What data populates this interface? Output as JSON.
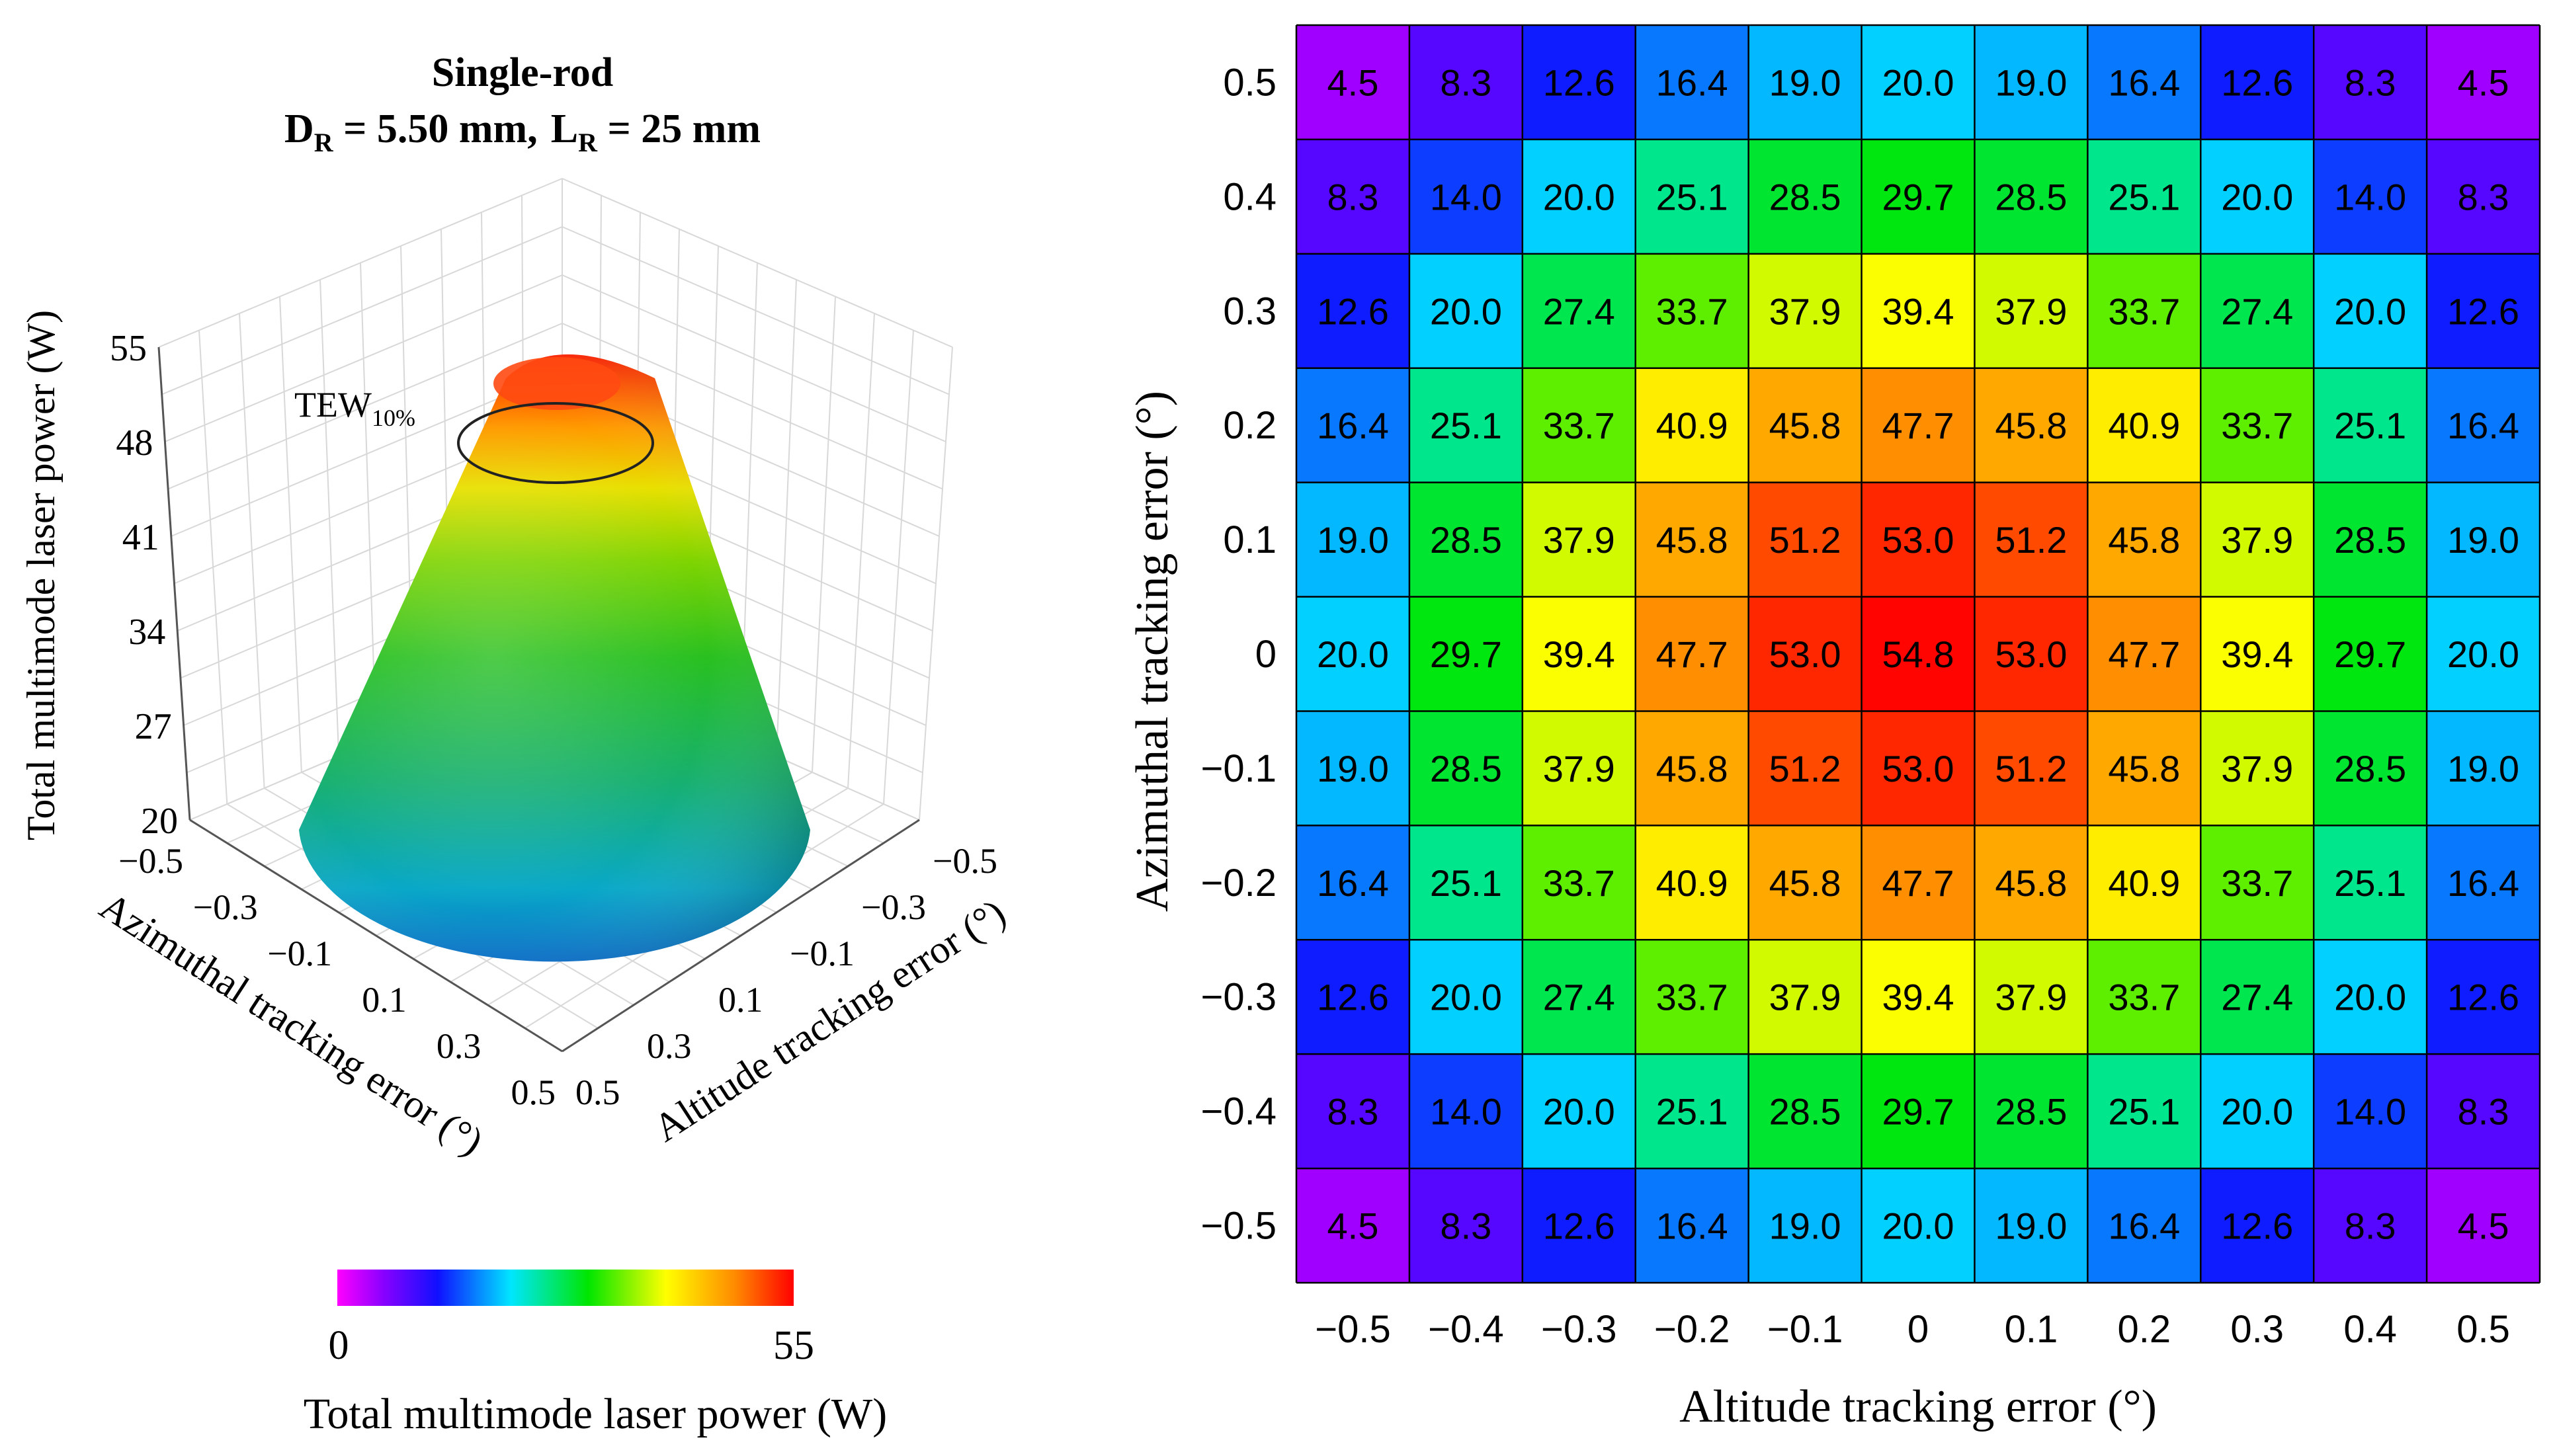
{
  "chart_data": [
    {
      "type": "surface",
      "title": "Single-rod",
      "subtitle_parts": {
        "d_symbol": "D",
        "d_sub": "R",
        "d_value": " = 5.50 mm,",
        "l_symbol": "L",
        "l_sub": "R",
        "l_value": " = 25 mm"
      },
      "zlabel": "Total multimode laser power (W)",
      "xlabel": "Azimuthal tracking error (°)",
      "ylabel": "Altitude tracking error (°)",
      "z_ticks": [
        "55",
        "48",
        "41",
        "34",
        "27",
        "20"
      ],
      "zlim": [
        20,
        55
      ],
      "x_ticks": [
        "−0.5",
        "−0.3",
        "−0.1",
        "0.1",
        "0.3",
        "0.5"
      ],
      "y_ticks": [
        "−0.5",
        "−0.3",
        "−0.1",
        "0.1",
        "0.3",
        "0.5"
      ],
      "annotation": {
        "text": "TEW",
        "sub": "10%"
      },
      "peak": 54.8,
      "colorbar": {
        "min_label": "0",
        "max_label": "55",
        "label": "Total multimode laser power (W)",
        "range": [
          0,
          55
        ]
      }
    },
    {
      "type": "heatmap",
      "xlabel": "Altitude tracking error (°)",
      "ylabel": "Azimuthal tracking error (°)",
      "x": [
        "−0.5",
        "−0.4",
        "−0.3",
        "−0.2",
        "−0.1",
        "0",
        "0.1",
        "0.2",
        "0.3",
        "0.4",
        "0.5"
      ],
      "y": [
        "0.5",
        "0.4",
        "0.3",
        "0.2",
        "0.1",
        "0",
        "−0.1",
        "−0.2",
        "−0.3",
        "−0.4",
        "−0.5"
      ],
      "values": [
        [
          "4.5",
          "8.3",
          "12.6",
          "16.4",
          "19.0",
          "20.0",
          "19.0",
          "16.4",
          "12.6",
          "8.3",
          "4.5"
        ],
        [
          "8.3",
          "14.0",
          "20.0",
          "25.1",
          "28.5",
          "29.7",
          "28.5",
          "25.1",
          "20.0",
          "14.0",
          "8.3"
        ],
        [
          "12.6",
          "20.0",
          "27.4",
          "33.7",
          "37.9",
          "39.4",
          "37.9",
          "33.7",
          "27.4",
          "20.0",
          "12.6"
        ],
        [
          "16.4",
          "25.1",
          "33.7",
          "40.9",
          "45.8",
          "47.7",
          "45.8",
          "40.9",
          "33.7",
          "25.1",
          "16.4"
        ],
        [
          "19.0",
          "28.5",
          "37.9",
          "45.8",
          "51.2",
          "53.0",
          "51.2",
          "45.8",
          "37.9",
          "28.5",
          "19.0"
        ],
        [
          "20.0",
          "29.7",
          "39.4",
          "47.7",
          "53.0",
          "54.8",
          "53.0",
          "47.7",
          "39.4",
          "29.7",
          "20.0"
        ],
        [
          "19.0",
          "28.5",
          "37.9",
          "45.8",
          "51.2",
          "53.0",
          "51.2",
          "45.8",
          "37.9",
          "28.5",
          "19.0"
        ],
        [
          "16.4",
          "25.1",
          "33.7",
          "40.9",
          "45.8",
          "47.7",
          "45.8",
          "40.9",
          "33.7",
          "25.1",
          "16.4"
        ],
        [
          "12.6",
          "20.0",
          "27.4",
          "33.7",
          "37.9",
          "39.4",
          "37.9",
          "33.7",
          "27.4",
          "20.0",
          "12.6"
        ],
        [
          "8.3",
          "14.0",
          "20.0",
          "25.1",
          "28.5",
          "29.7",
          "28.5",
          "25.1",
          "20.0",
          "14.0",
          "8.3"
        ],
        [
          "4.5",
          "8.3",
          "12.6",
          "16.4",
          "19.0",
          "20.0",
          "19.0",
          "16.4",
          "12.6",
          "8.3",
          "4.5"
        ]
      ],
      "color_range": [
        0,
        55
      ]
    }
  ]
}
